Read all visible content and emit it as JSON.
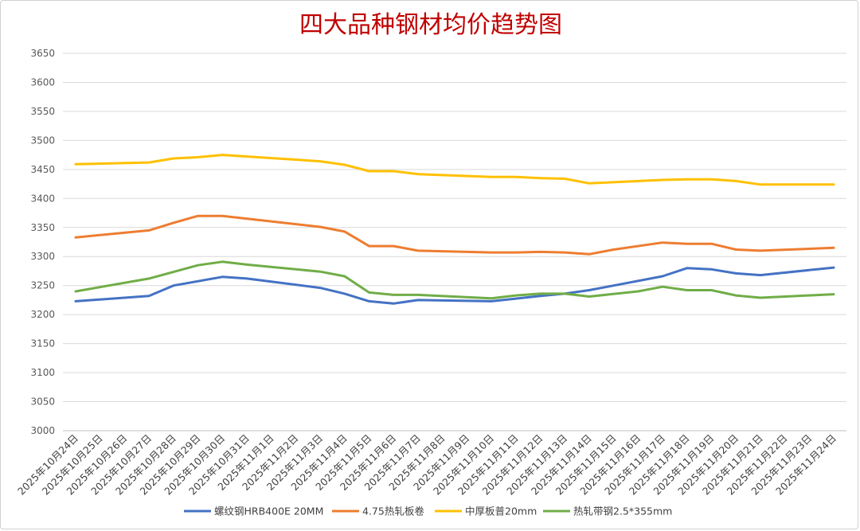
{
  "chart_data": {
    "type": "line",
    "title": "四大品种钢材均价趋势图",
    "xlabel": "",
    "ylabel": "",
    "ylim": [
      3000,
      3650
    ],
    "ytick_step": 50,
    "grid": true,
    "legend_position": "bottom",
    "categories": [
      "2025年10月24日",
      "2025年10月25日",
      "2025年10月26日",
      "2025年10月27日",
      "2025年10月28日",
      "2025年10月29日",
      "2025年10月30日",
      "2025年10月31日",
      "2025年11月1日",
      "2025年11月2日",
      "2025年11月3日",
      "2025年11月4日",
      "2025年11月5日",
      "2025年11月6日",
      "2025年11月7日",
      "2025年11月8日",
      "2025年11月9日",
      "2025年11月10日",
      "2025年11月11日",
      "2025年11月12日",
      "2025年11月13日",
      "2025年11月14日",
      "2025年11月15日",
      "2025年11月16日",
      "2025年11月17日",
      "2025年11月18日",
      "2025年11月19日",
      "2025年11月20日",
      "2025年11月21日",
      "2025年11月22日",
      "2025年11月23日",
      "2025年11月24日"
    ],
    "series": [
      {
        "name": "螺纹钢HRB400E 20MM",
        "color": "#4472C4",
        "points": [
          [
            0,
            3223
          ],
          [
            3,
            3232
          ],
          [
            4,
            3250
          ],
          [
            6,
            3265
          ],
          [
            7,
            3262
          ],
          [
            10,
            3246
          ],
          [
            11,
            3236
          ],
          [
            12,
            3223
          ],
          [
            13,
            3219
          ],
          [
            14,
            3225
          ],
          [
            17,
            3223
          ],
          [
            19,
            3232
          ],
          [
            20,
            3236
          ],
          [
            21,
            3242
          ],
          [
            22,
            3250
          ],
          [
            24,
            3266
          ],
          [
            25,
            3280
          ],
          [
            26,
            3278
          ],
          [
            27,
            3271
          ],
          [
            28,
            3268
          ],
          [
            31,
            3281
          ]
        ]
      },
      {
        "name": "4.75热轧板卷",
        "color": "#ED7D31",
        "points": [
          [
            0,
            3333
          ],
          [
            3,
            3345
          ],
          [
            4,
            3358
          ],
          [
            5,
            3370
          ],
          [
            6,
            3370
          ],
          [
            10,
            3351
          ],
          [
            11,
            3343
          ],
          [
            12,
            3318
          ],
          [
            13,
            3318
          ],
          [
            14,
            3310
          ],
          [
            17,
            3307
          ],
          [
            18,
            3307
          ],
          [
            19,
            3308
          ],
          [
            20,
            3307
          ],
          [
            21,
            3304
          ],
          [
            22,
            3312
          ],
          [
            24,
            3324
          ],
          [
            25,
            3322
          ],
          [
            26,
            3322
          ],
          [
            27,
            3312
          ],
          [
            28,
            3310
          ],
          [
            31,
            3315
          ]
        ]
      },
      {
        "name": "中厚板普20mm",
        "color": "#FFC000",
        "points": [
          [
            0,
            3459
          ],
          [
            3,
            3462
          ],
          [
            4,
            3469
          ],
          [
            5,
            3471
          ],
          [
            6,
            3475
          ],
          [
            10,
            3464
          ],
          [
            11,
            3458
          ],
          [
            12,
            3447
          ],
          [
            13,
            3447
          ],
          [
            14,
            3442
          ],
          [
            17,
            3437
          ],
          [
            18,
            3437
          ],
          [
            19,
            3435
          ],
          [
            20,
            3434
          ],
          [
            21,
            3426
          ],
          [
            24,
            3432
          ],
          [
            25,
            3433
          ],
          [
            26,
            3433
          ],
          [
            27,
            3430
          ],
          [
            28,
            3424
          ],
          [
            31,
            3424
          ]
        ]
      },
      {
        "name": "热轧带钢2.5*355mm",
        "color": "#70AD47",
        "points": [
          [
            0,
            3240
          ],
          [
            3,
            3262
          ],
          [
            5,
            3285
          ],
          [
            6,
            3291
          ],
          [
            7,
            3286
          ],
          [
            10,
            3274
          ],
          [
            11,
            3266
          ],
          [
            12,
            3238
          ],
          [
            13,
            3234
          ],
          [
            14,
            3234
          ],
          [
            17,
            3228
          ],
          [
            18,
            3233
          ],
          [
            19,
            3236
          ],
          [
            20,
            3236
          ],
          [
            21,
            3231
          ],
          [
            23,
            3240
          ],
          [
            24,
            3248
          ],
          [
            25,
            3242
          ],
          [
            26,
            3242
          ],
          [
            27,
            3233
          ],
          [
            28,
            3229
          ],
          [
            31,
            3235
          ]
        ]
      }
    ]
  }
}
